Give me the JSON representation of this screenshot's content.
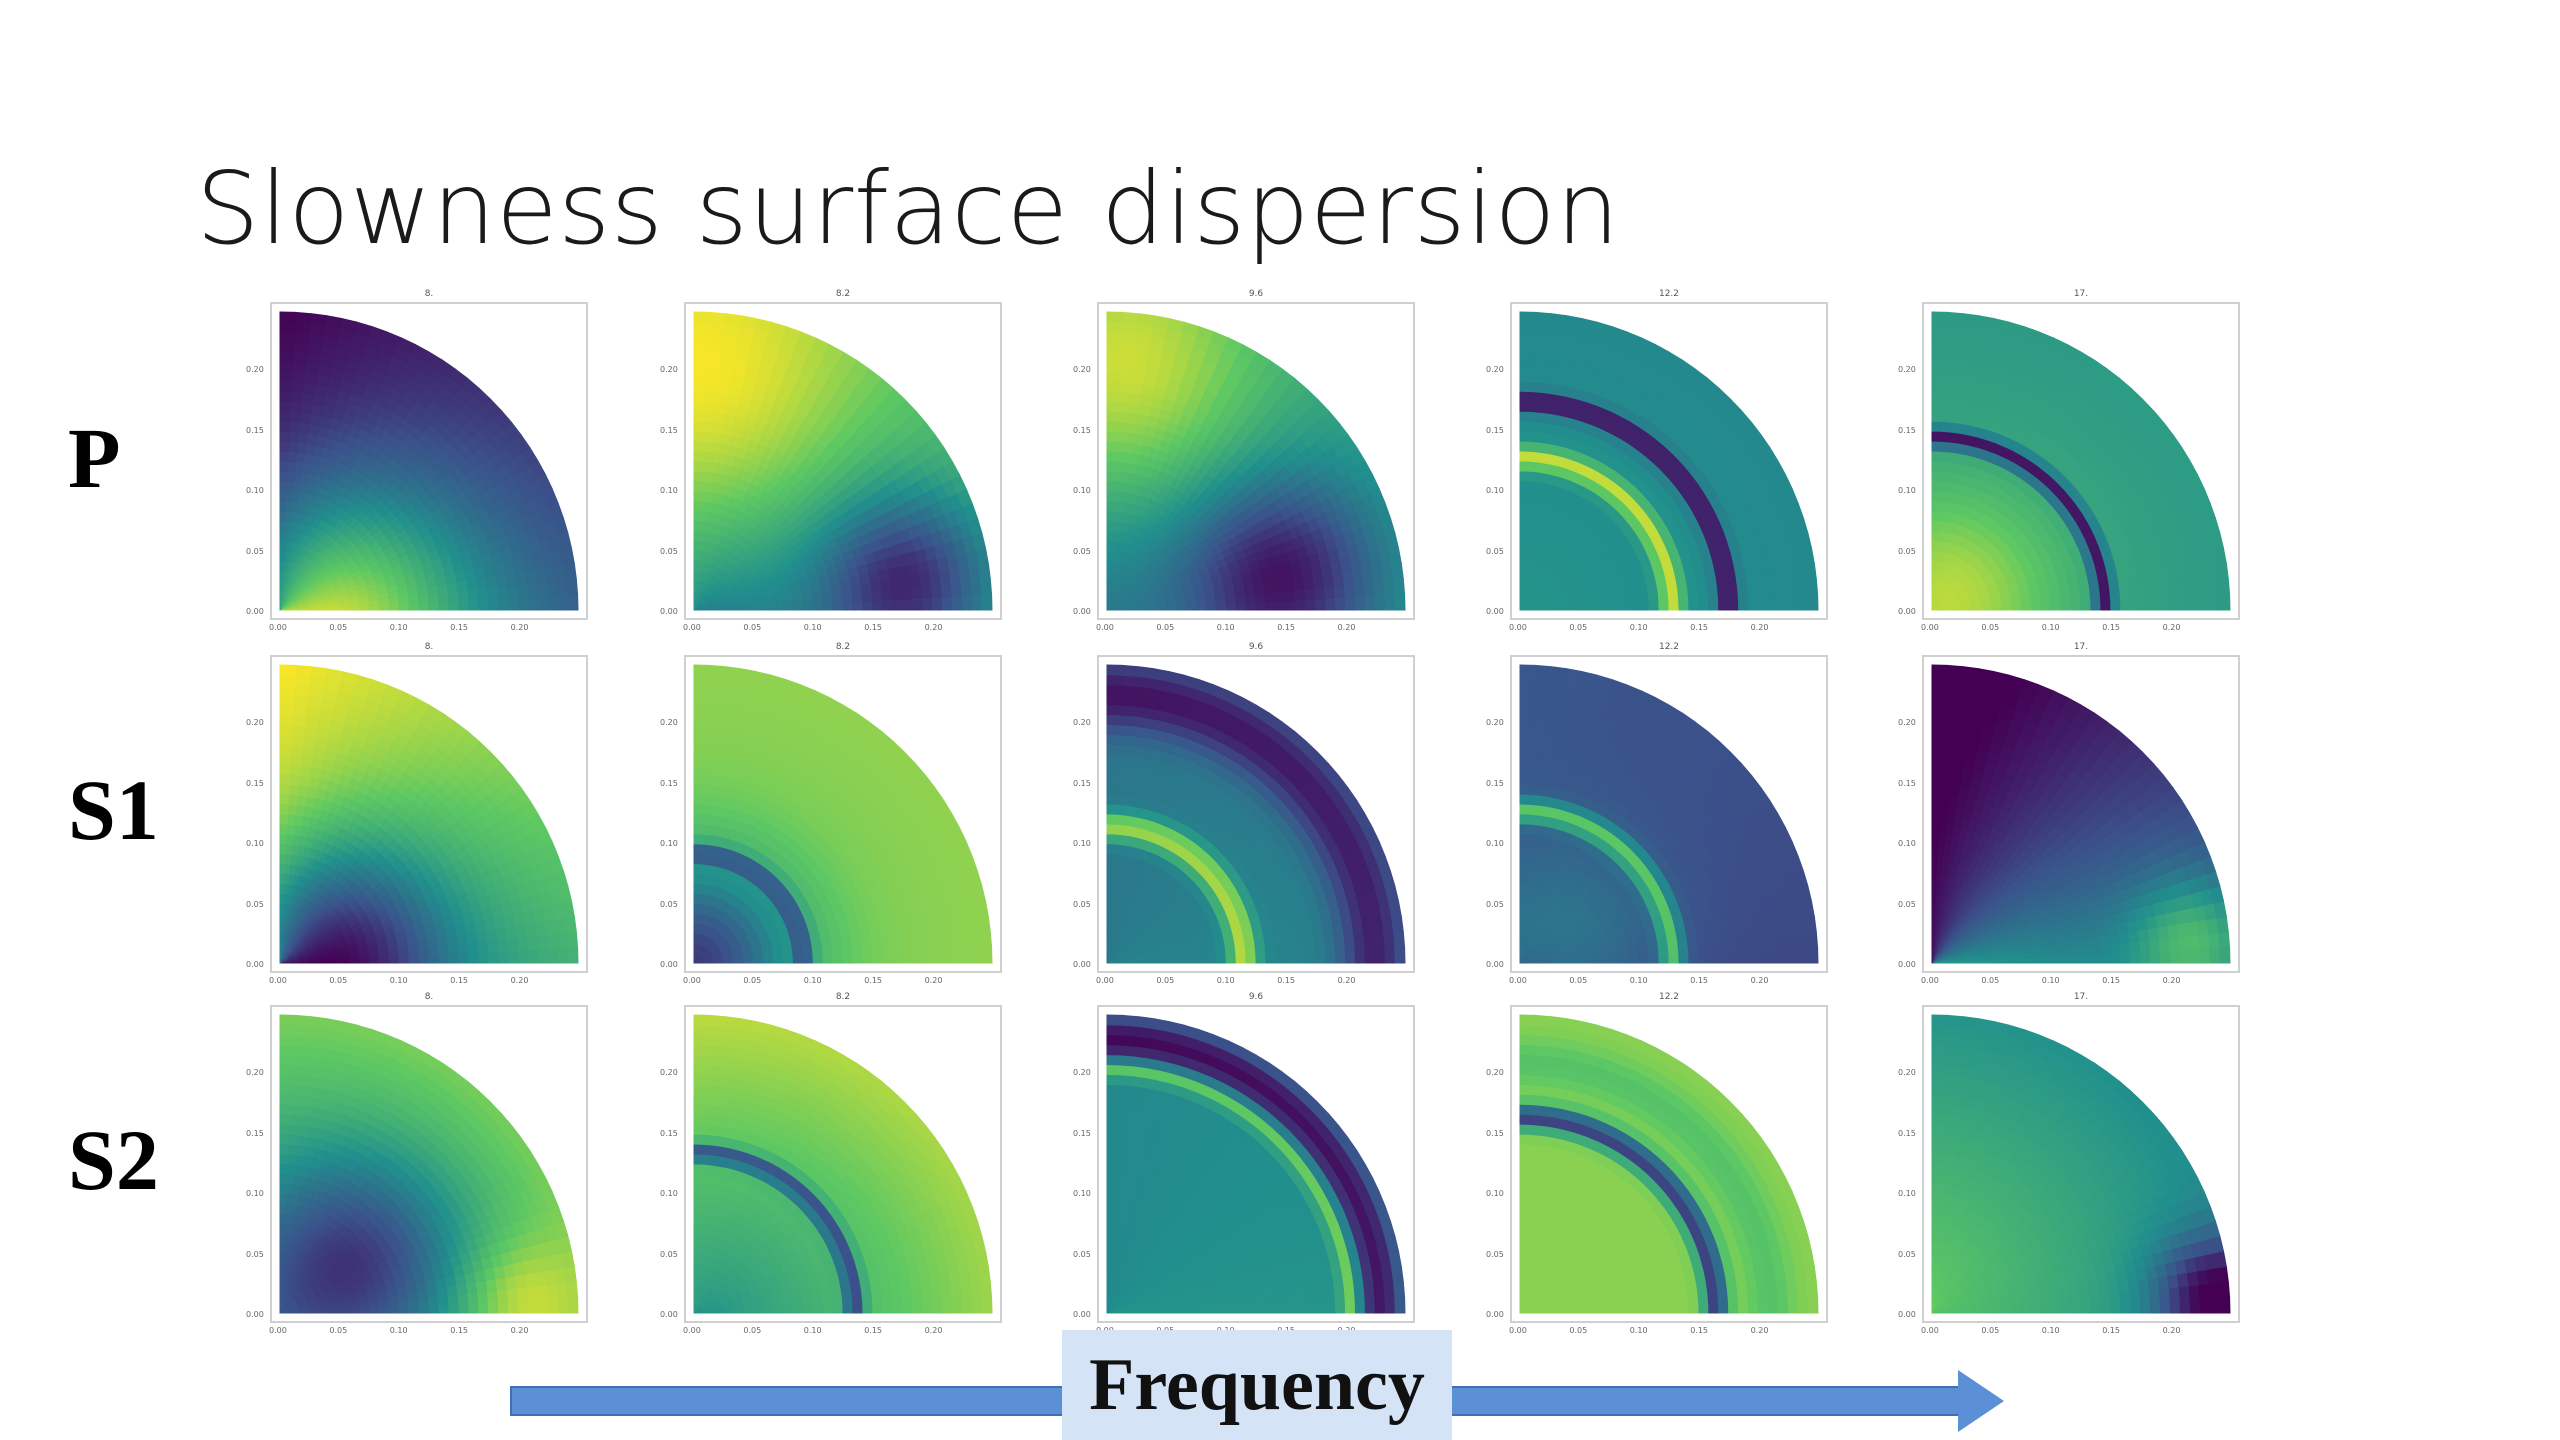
{
  "title": "Slowness surface dispersion",
  "row_labels": [
    "P",
    "S1",
    "S2"
  ],
  "column_labels": [
    "8.",
    "8.2",
    "9.6",
    "12.2",
    "17."
  ],
  "y_tick_labels": [
    "0.00",
    "0.05",
    "0.10",
    "0.15",
    "0.20"
  ],
  "x_tick_labels": [
    "0.00",
    "0.05",
    "0.10",
    "0.15",
    "0.20"
  ],
  "arrow_label": "Frequency",
  "colormap": [
    "#440154",
    "#3b528b",
    "#21908d",
    "#5dc863",
    "#fde725"
  ],
  "panels": [
    [
      {
        "base": 0.5,
        "terms": [
          {
            "f": "r",
            "w": -0.2
          },
          {
            "f": "t",
            "w": -0.3
          },
          {
            "f": "blob",
            "r": 0.05,
            "t": 0.03,
            "s": 0.11,
            "w": 0.45
          }
        ]
      },
      {
        "base": 0.35,
        "terms": [
          {
            "f": "r",
            "w": 0.25
          },
          {
            "f": "t",
            "w": 0.1
          },
          {
            "f": "blob",
            "r": 0.18,
            "t": 0.15,
            "s": 0.07,
            "w": -0.45
          },
          {
            "f": "blob",
            "r": 0.18,
            "t": 1.5,
            "s": 0.14,
            "w": 0.35
          }
        ]
      },
      {
        "base": 0.4,
        "terms": [
          {
            "f": "r",
            "w": 0.15
          },
          {
            "f": "blob",
            "r": 0.15,
            "t": 0.2,
            "s": 0.08,
            "w": -0.45
          },
          {
            "f": "blob",
            "r": 0.2,
            "t": 1.5,
            "s": 0.12,
            "w": 0.4
          }
        ]
      },
      {
        "base": 0.52,
        "terms": [
          {
            "f": "ring",
            "r": 0.175,
            "s": 0.008,
            "w": -0.5
          },
          {
            "f": "ring",
            "r": 0.128,
            "s": 0.01,
            "w": 0.42
          },
          {
            "f": "r",
            "w": -0.05
          }
        ]
      },
      {
        "base": 0.6,
        "terms": [
          {
            "f": "ring",
            "r": 0.145,
            "s": 0.008,
            "w": -0.55
          },
          {
            "f": "blob",
            "r": 0.02,
            "t": 0.6,
            "s": 0.09,
            "w": 0.3
          },
          {
            "f": "r",
            "w": -0.05
          }
        ]
      }
    ],
    [
      {
        "base": 0.45,
        "terms": [
          {
            "f": "t",
            "w": 0.35
          },
          {
            "f": "blob",
            "r": 0.05,
            "t": 0.3,
            "s": 0.09,
            "w": -0.5
          },
          {
            "f": "r",
            "w": 0.2
          }
        ]
      },
      {
        "base": 0.78,
        "terms": [
          {
            "f": "blob",
            "r": 0.0,
            "t": 0.5,
            "s": 0.085,
            "w": -0.6
          },
          {
            "f": "ring",
            "r": 0.092,
            "s": 0.008,
            "w": -0.4
          },
          {
            "f": "r",
            "w": 0.05
          }
        ]
      },
      {
        "base": 0.45,
        "terms": [
          {
            "f": "ring",
            "r": 0.115,
            "s": 0.012,
            "w": 0.45
          },
          {
            "f": "ring",
            "r": 0.225,
            "s": 0.03,
            "w": -0.35
          },
          {
            "f": "t",
            "w": -0.05
          }
        ]
      },
      {
        "base": 0.22,
        "terms": [
          {
            "f": "ring",
            "r": 0.128,
            "s": 0.01,
            "w": 0.45
          },
          {
            "f": "blob",
            "r": 0.05,
            "t": 0.5,
            "s": 0.08,
            "w": 0.15
          },
          {
            "f": "t",
            "w": 0.05
          }
        ]
      },
      {
        "base": 0.55,
        "terms": [
          {
            "f": "t",
            "w": -0.5
          },
          {
            "f": "r",
            "w": -0.15
          },
          {
            "f": "blob",
            "r": 0.22,
            "t": 0.1,
            "s": 0.05,
            "w": 0.3
          }
        ]
      }
    ],
    [
      {
        "base": 0.45,
        "terms": [
          {
            "f": "blob",
            "r": 0.08,
            "t": 0.6,
            "s": 0.09,
            "w": -0.4
          },
          {
            "f": "r",
            "w": 0.35
          },
          {
            "f": "blob",
            "r": 0.2,
            "t": 0.05,
            "s": 0.05,
            "w": 0.2
          }
        ]
      },
      {
        "base": 0.5,
        "terms": [
          {
            "f": "ring",
            "r": 0.135,
            "s": 0.008,
            "w": -0.5
          },
          {
            "f": "r",
            "w": 0.35
          },
          {
            "f": "t",
            "w": 0.05
          }
        ]
      },
      {
        "base": 0.52,
        "terms": [
          {
            "f": "ring",
            "r": 0.205,
            "s": 0.008,
            "w": 0.35
          },
          {
            "f": "ring",
            "r": 0.23,
            "s": 0.02,
            "w": -0.45
          },
          {
            "f": "t",
            "w": -0.05
          }
        ]
      },
      {
        "base": 0.82,
        "terms": [
          {
            "f": "ring",
            "r": 0.165,
            "s": 0.01,
            "w": -0.65
          },
          {
            "f": "ring",
            "r": 0.21,
            "s": 0.02,
            "w": -0.1
          }
        ]
      },
      {
        "base": 0.72,
        "terms": [
          {
            "f": "blob",
            "r": 0.24,
            "t": 0.05,
            "s": 0.05,
            "w": -0.55
          },
          {
            "f": "r",
            "w": -0.25
          },
          {
            "f": "t",
            "w": 0.05
          }
        ]
      }
    ]
  ]
}
